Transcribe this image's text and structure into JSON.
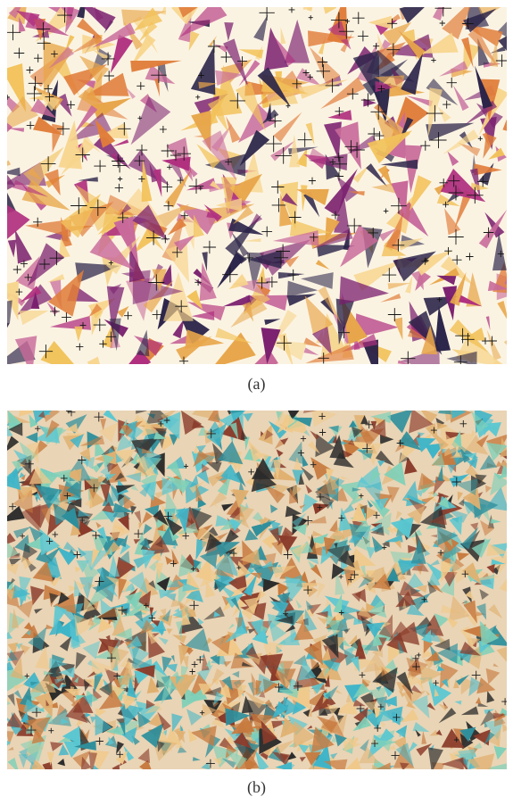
{
  "figure": {
    "panels": [
      {
        "label": "(a)",
        "palette": {
          "background": "#fbf3e2",
          "crystal_colors": [
            "#e8a64a",
            "#f2c25a",
            "#c86a9a",
            "#b0307f",
            "#7a1f6e",
            "#2a2348",
            "#f7d48a",
            "#e07d3a"
          ],
          "brush_color": "#151515"
        }
      },
      {
        "label": "(b)",
        "palette": {
          "background": "#e9d4b5",
          "crystal_colors": [
            "#3fb5c8",
            "#5ac7d1",
            "#2e8f9c",
            "#e0b070",
            "#f0c98a",
            "#c77a3e",
            "#8a3b2a",
            "#2b2b2b",
            "#7fd0b8"
          ],
          "brush_color": "#1c1c1c"
        }
      }
    ]
  }
}
